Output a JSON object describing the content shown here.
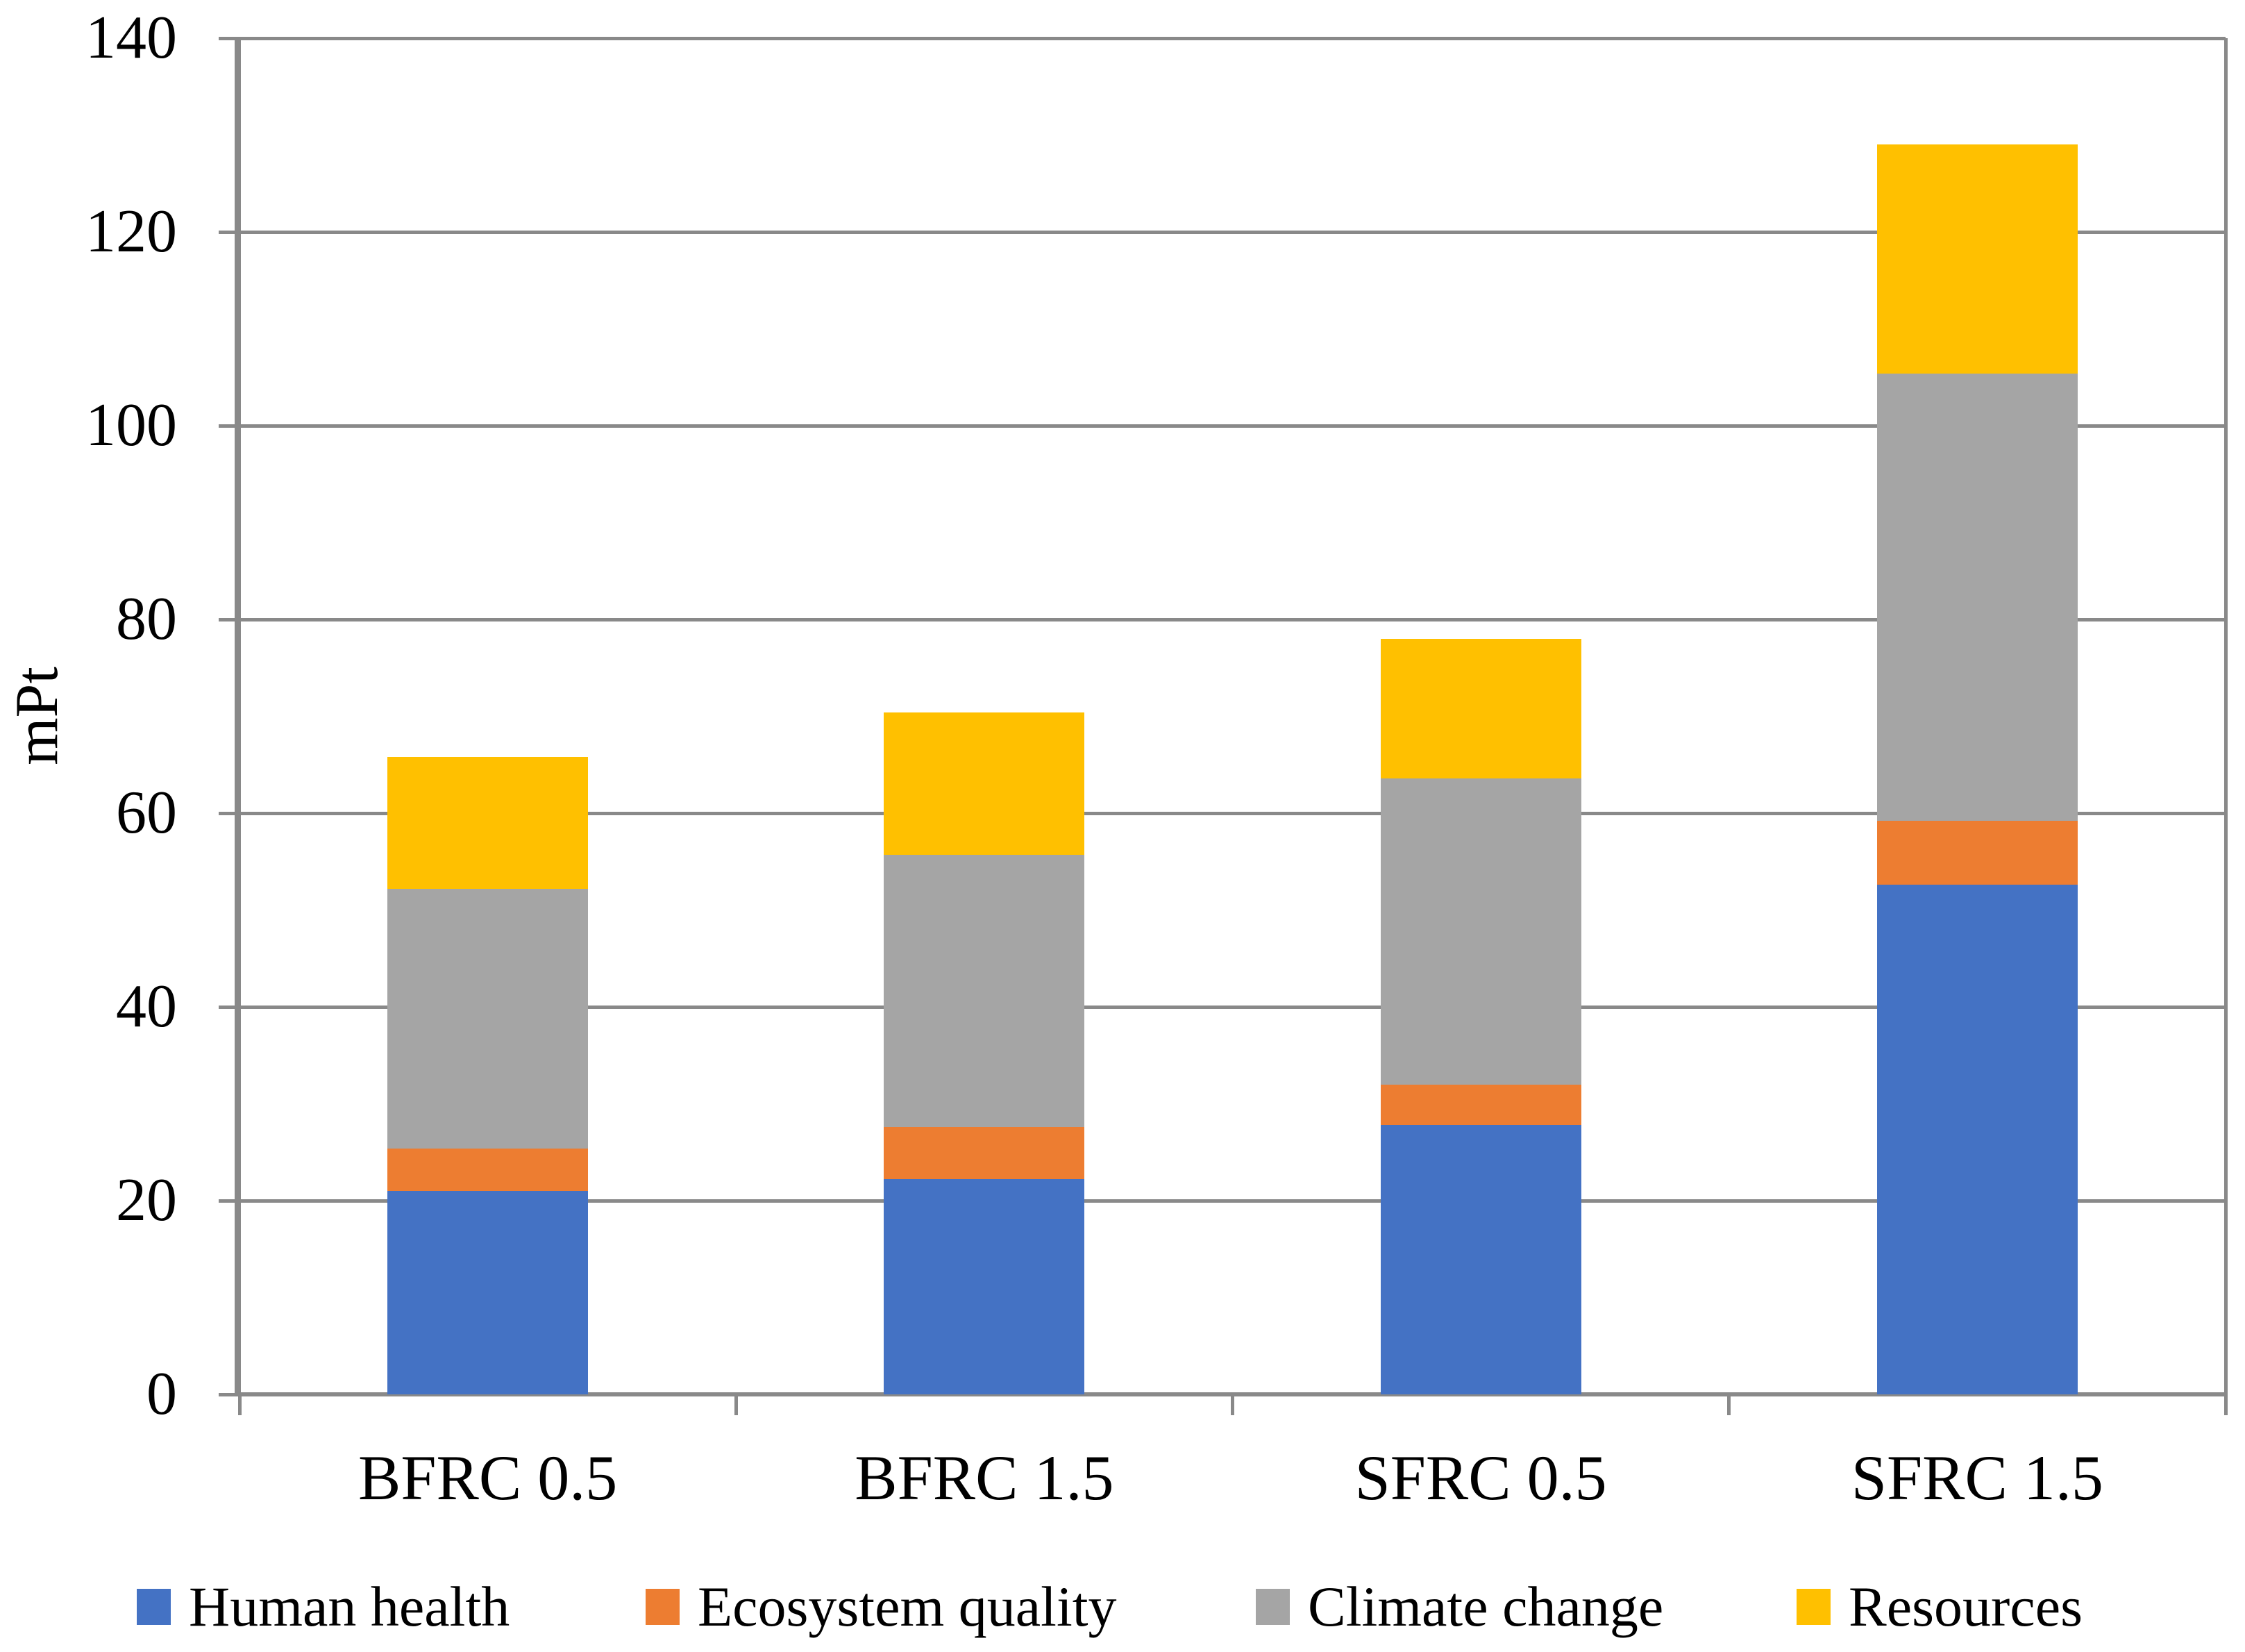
{
  "chart_data": {
    "type": "bar",
    "stacked": true,
    "title": "",
    "xlabel": "",
    "ylabel": "mPt",
    "ylim": [
      0,
      140
    ],
    "ytick_step": 20,
    "ytick_labels": [
      "0",
      "20",
      "40",
      "60",
      "80",
      "100",
      "120",
      "140"
    ],
    "grid": "horizontal",
    "legend_position": "bottom",
    "categories": [
      "BFRC 0.5",
      "BFRC 1.5",
      "SFRC 0.5",
      "SFRC 1.5"
    ],
    "series": [
      {
        "name": "Human health",
        "color": "#4472C4",
        "values": [
          21.0,
          22.2,
          27.8,
          52.6
        ]
      },
      {
        "name": "Ecosystem quality",
        "color": "#ED7D31",
        "values": [
          4.4,
          5.4,
          4.2,
          6.6
        ]
      },
      {
        "name": "Climate change",
        "color": "#A5A5A5",
        "values": [
          26.8,
          28.1,
          31.6,
          46.2
        ]
      },
      {
        "name": "Resources",
        "color": "#FFC000",
        "values": [
          13.6,
          14.7,
          14.4,
          23.6
        ]
      }
    ]
  },
  "styles": {
    "axis_color": "#898989",
    "text_color": "#000000",
    "background": "#FFFFFF"
  }
}
